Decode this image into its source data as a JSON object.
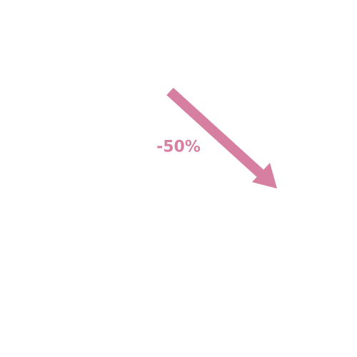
{
  "change": {
    "label": "-50%",
    "direction": "down-right"
  },
  "icons": {
    "arrow": "arrow-down-right-icon"
  },
  "colors": {
    "background": "#ffffff",
    "accent": "#d77fa1"
  }
}
